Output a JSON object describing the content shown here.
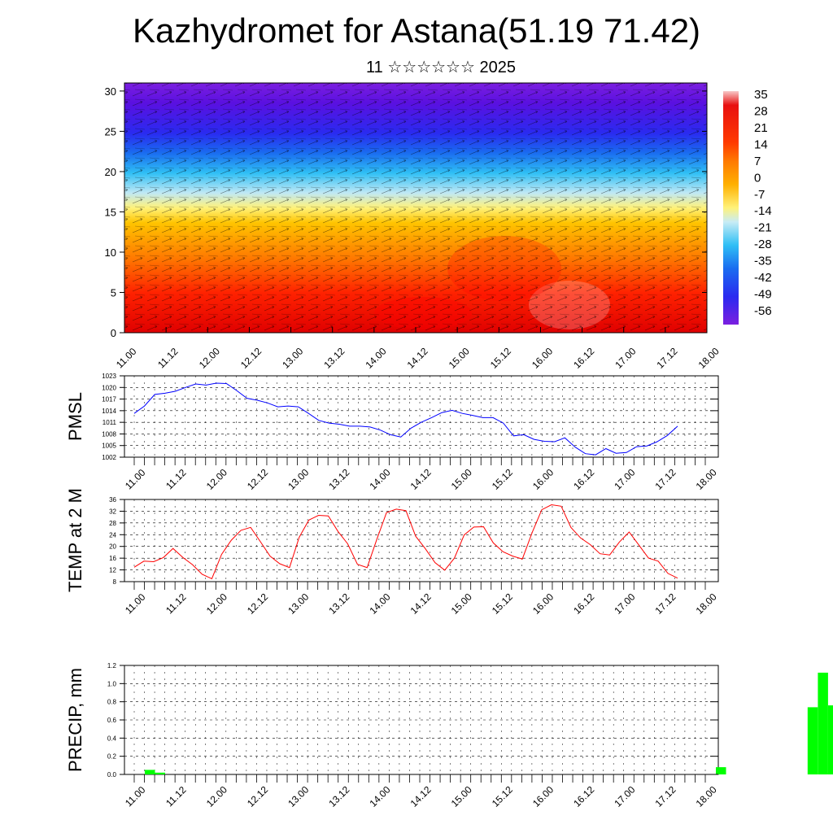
{
  "page": {
    "title": "Kazhydromet for Astana(51.19 71.42)",
    "subtitle": "11 ☆☆☆☆☆☆ 2025"
  },
  "chart_data": [
    {
      "type": "heatmap",
      "y_ticks": [
        "0",
        "5",
        "10",
        "15",
        "20",
        "25",
        "30"
      ],
      "ylim": [
        0,
        31
      ],
      "x_ticks": [
        "11.00",
        "11.12",
        "12.00",
        "12.12",
        "13.00",
        "13.12",
        "14.00",
        "14.12",
        "15.00",
        "15.12",
        "16.00",
        "16.12",
        "17.00",
        "17.12",
        "18.00"
      ],
      "colorbar_labels": [
        "35",
        "28",
        "21",
        "14",
        "7",
        "0",
        "-7",
        "-14",
        "-21",
        "-28",
        "-35",
        "-42",
        "-49",
        "-56"
      ]
    },
    {
      "type": "line",
      "ylabel": "PMSL",
      "color": "#0000ff",
      "ylim": [
        1002,
        1023
      ],
      "y_ticks": [
        "1023",
        "1020",
        "1017",
        "1014",
        "1011",
        "1008",
        "1005",
        "1002"
      ],
      "x_ticks": [
        "11.00",
        "11.12",
        "12.00",
        "12.12",
        "13.00",
        "13.12",
        "14.00",
        "14.12",
        "15.00",
        "15.12",
        "16.00",
        "16.12",
        "17.00",
        "17.12",
        "18.00"
      ],
      "values": [
        1013.3,
        1015.2,
        1018.2,
        1018.5,
        1019.0,
        1020.0,
        1020.9,
        1020.6,
        1021.1,
        1021.0,
        1019.2,
        1017.2,
        1016.7,
        1016.0,
        1015.0,
        1015.2,
        1015.0,
        1013.3,
        1011.5,
        1010.8,
        1010.5,
        1010.0,
        1010.0,
        1009.8,
        1009.0,
        1007.8,
        1007.2,
        1009.5,
        1011.0,
        1012.2,
        1013.5,
        1014.1,
        1013.3,
        1012.8,
        1012.2,
        1012.2,
        1010.8,
        1007.5,
        1007.8,
        1006.6,
        1006.1,
        1006.0,
        1007.0,
        1004.6,
        1002.9,
        1002.6,
        1004.2,
        1003.0,
        1003.2,
        1004.7,
        1004.9,
        1006.0,
        1007.6,
        1010.0
      ]
    },
    {
      "type": "line",
      "ylabel": "TEMP at 2 M",
      "color": "#ff0000",
      "ylim": [
        8,
        36
      ],
      "y_ticks": [
        "36",
        "32",
        "28",
        "24",
        "20",
        "16",
        "12",
        "8"
      ],
      "x_ticks": [
        "11.00",
        "11.12",
        "12.00",
        "12.12",
        "13.00",
        "13.12",
        "14.00",
        "14.12",
        "15.00",
        "15.12",
        "16.00",
        "16.12",
        "17.00",
        "17.12",
        "18.00"
      ],
      "values": [
        12.9,
        15.0,
        14.8,
        16.2,
        19.3,
        16.3,
        13.8,
        10.5,
        9.0,
        17.3,
        22.1,
        25.5,
        26.5,
        21.6,
        16.7,
        14.1,
        12.8,
        23.1,
        29.0,
        30.6,
        30.4,
        25.1,
        20.9,
        13.9,
        12.8,
        22.4,
        31.5,
        32.7,
        32.2,
        23.5,
        19.2,
        14.5,
        11.9,
        16.0,
        23.9,
        26.6,
        26.7,
        21.2,
        18.2,
        16.7,
        15.7,
        24.7,
        32.5,
        34.2,
        33.7,
        26.5,
        22.9,
        20.6,
        17.5,
        17.1,
        21.5,
        24.9,
        20.5,
        16.0,
        15.0,
        10.8,
        9.2
      ]
    },
    {
      "type": "bar",
      "ylabel": "PRECIP, mm",
      "color": "#00ff00",
      "ylim": [
        0,
        1.2
      ],
      "y_ticks": [
        "1.2",
        "1.0",
        "0.8",
        "0.6",
        "0.4",
        "0.2",
        "0.0"
      ],
      "x_ticks": [
        "11.00",
        "11.12",
        "12.00",
        "12.12",
        "13.00",
        "13.12",
        "14.00",
        "14.12",
        "15.00",
        "15.12",
        "16.00",
        "16.12",
        "17.00",
        "17.12",
        "18.00"
      ],
      "bars": [
        {
          "x": 3,
          "value": 0.05
        },
        {
          "x": 6,
          "value": 0.02
        },
        {
          "x": 171,
          "value": 0.08
        },
        {
          "x": 198,
          "value": 0.74
        },
        {
          "x": 201,
          "value": 1.12
        },
        {
          "x": 204,
          "value": 0.76
        }
      ]
    }
  ]
}
